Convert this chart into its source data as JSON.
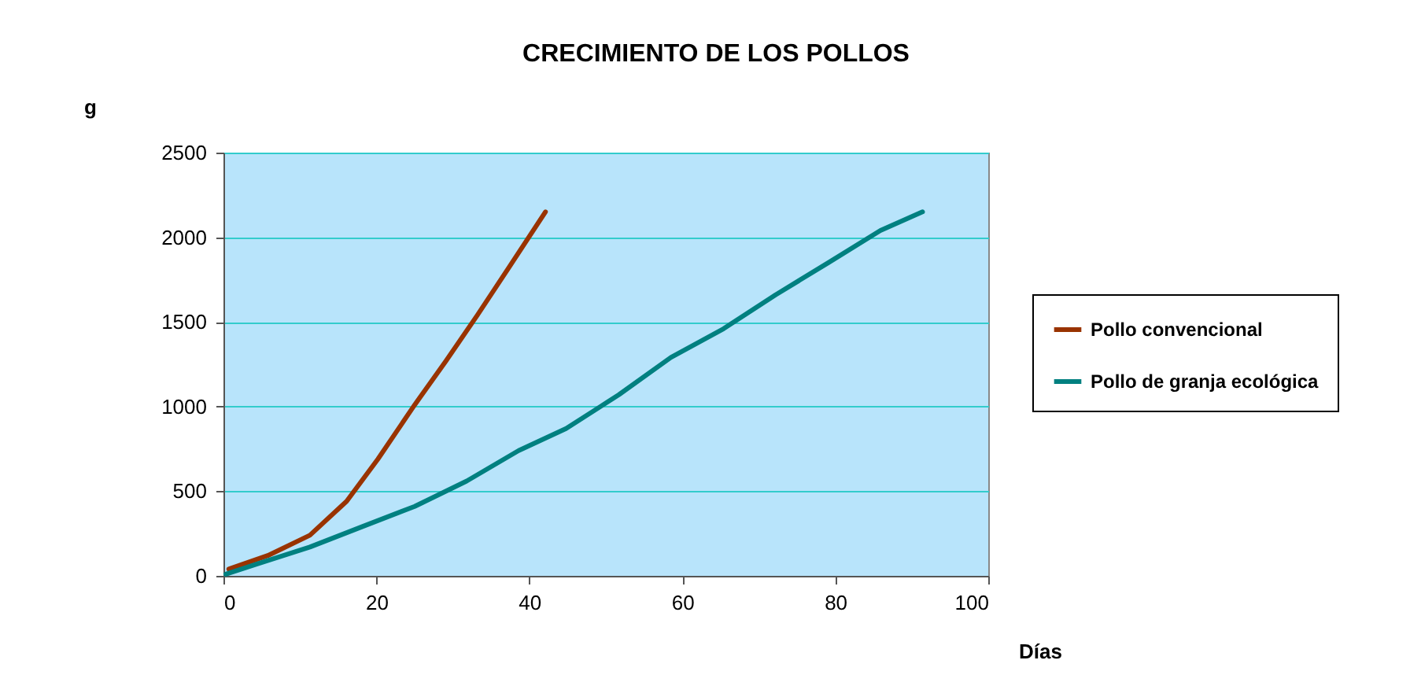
{
  "chart_data": {
    "type": "line",
    "title": "CRECIMIENTO DE LOS POLLOS",
    "xlabel": "Días",
    "ylabel": "g",
    "xlim": [
      0,
      100
    ],
    "xticks": [
      0,
      20,
      40,
      60,
      80,
      100
    ],
    "ylim": [
      0,
      2500
    ],
    "yticks": [
      0,
      500,
      1000,
      1500,
      2000,
      2500
    ],
    "grid": "y",
    "legend": "right",
    "line_style": "solid",
    "marker": "none",
    "series": [
      {
        "name": "Pollo convencional",
        "color": "#993300",
        "x": [
          0.7,
          5.8,
          11.3,
          16.1,
          20.2,
          25,
          29.1,
          33.2,
          37.3,
          42.1
        ],
        "values": [
          40,
          120,
          240,
          440,
          690,
          1010,
          1270,
          1540,
          1820,
          2150
        ]
      },
      {
        "name": "Pollo de granja ecológica",
        "color": "#008080",
        "x": [
          0.3,
          4.4,
          11.3,
          18.1,
          25,
          31.8,
          38.6,
          44.8,
          51.7,
          58.5,
          65.4,
          72.2,
          79.1,
          85.9,
          91.4
        ],
        "values": [
          10,
          70,
          170,
          290,
          410,
          560,
          740,
          870,
          1070,
          1290,
          1460,
          1660,
          1850,
          2040,
          2150
        ]
      }
    ]
  }
}
